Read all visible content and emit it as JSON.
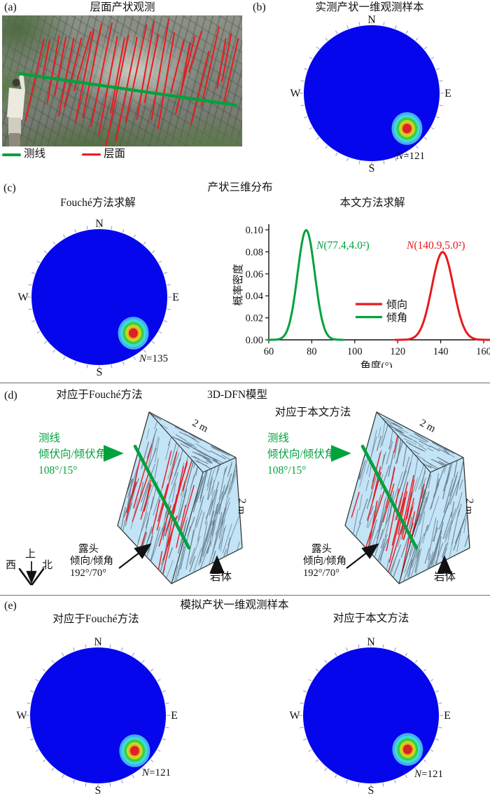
{
  "colors": {
    "stereonet_blue": "#0606EC",
    "line_green": "#00A23C",
    "line_red": "#E8191C",
    "block_fill": "#C2E4F6",
    "trace_gray": "#64798A",
    "tick_gray": "#8F94C4",
    "text_black": "#111111",
    "hotspot_rings": [
      "#47ADF2",
      "#39DED9",
      "#3FCC3F",
      "#BCDF25",
      "#EFB21C",
      "#DA2428"
    ]
  },
  "panel_a": {
    "tag": "(a)",
    "title": "层面产状观测",
    "legend": [
      {
        "label": "测线",
        "color": "#00A23C"
      },
      {
        "label": "层面",
        "color": "#E8191C"
      }
    ]
  },
  "panel_b": {
    "tag": "(b)",
    "title": "实测产状一维观测样本"
  },
  "panel_c": {
    "tag": "(c)",
    "title": "产状三维分布",
    "left_subtitle": "Fouché方法求解"
  },
  "panel_d": {
    "tag": "(d)",
    "title": "3D-DFN模型",
    "left_subtitle": "对应于Fouché方法",
    "right_subtitle": "对应于本文方法",
    "scanline_label": [
      "测线",
      "倾伏向/倾伏角",
      "108°/15°"
    ],
    "outcrop_label": [
      "露头",
      "倾向/倾角",
      "192°/70°"
    ],
    "rockmass_label": "岩体",
    "scale_label": "2 m",
    "compass": {
      "up": "上",
      "west": "西",
      "north": "北"
    }
  },
  "panel_e": {
    "tag": "(e)",
    "title": "模拟产状一维观测样本",
    "left_subtitle": "对应于Fouché方法",
    "right_subtitle": "对应于本文方法"
  },
  "stereonets": [
    {
      "id": "sn-b",
      "n": "N",
      "value": "=121",
      "cardinal": {
        "north": "N",
        "east": "E",
        "south": "S",
        "west": "W"
      },
      "hotspot_offset": {
        "dx": 0.52,
        "dy": 0.52
      }
    },
    {
      "id": "sn-c",
      "n": "N",
      "value": "=135",
      "cardinal": {
        "north": "N",
        "east": "E",
        "south": "S",
        "west": "W"
      },
      "hotspot_offset": {
        "dx": 0.5,
        "dy": 0.53
      }
    },
    {
      "id": "sn-e1",
      "n": "N",
      "value": "=121",
      "cardinal": {
        "north": "N",
        "east": "E",
        "south": "S",
        "west": "W"
      },
      "hotspot_offset": {
        "dx": 0.54,
        "dy": 0.52
      }
    },
    {
      "id": "sn-e2",
      "n": "N",
      "value": "=121",
      "cardinal": {
        "north": "N",
        "east": "E",
        "south": "S",
        "west": "W"
      },
      "hotspot_offset": {
        "dx": 0.54,
        "dy": 0.5
      }
    }
  ],
  "chart_data": [
    {
      "id": "density",
      "type": "line",
      "title": "本文方法求解",
      "xlabel": "角度(°)",
      "ylabel": "概率密度",
      "xlim": [
        60,
        160
      ],
      "ylim": [
        0,
        0.1
      ],
      "xticks": [
        60,
        80,
        100,
        120,
        140,
        160
      ],
      "yticks": [
        0,
        0.02,
        0.04,
        0.06,
        0.08,
        0.1
      ],
      "grid": false,
      "series": [
        {
          "name": "倾角",
          "color": "#00A23C",
          "distribution": "normal",
          "mean": 77.4,
          "sd": 4.0,
          "peak_density": 0.0997,
          "annotation": "N(77.4,4.0²)"
        },
        {
          "name": "倾向",
          "color": "#E8191C",
          "distribution": "normal",
          "mean": 140.9,
          "sd": 5.0,
          "peak_density": 0.0798,
          "annotation": "N(140.9,5.0²)"
        }
      ],
      "legend": [
        {
          "label": "倾向",
          "color": "#E8191C"
        },
        {
          "label": "倾角",
          "color": "#00A23C"
        }
      ],
      "legend_position": "center-bottom"
    },
    {
      "id": "stereonet-set",
      "type": "stereonet pole-density (lower hemisphere)",
      "plots": [
        {
          "title": "实测产状一维观测样本",
          "n": 121
        },
        {
          "title": "Fouché方法求解",
          "n": 135
        },
        {
          "title": "对应于Fouché方法",
          "n": 121
        },
        {
          "title": "对应于本文方法",
          "n": 121
        }
      ],
      "note": "single dense pole cluster in SE quadrant, ~0.72R from center (azimuth ≈135°), jet colormap on uniform blue background"
    }
  ]
}
